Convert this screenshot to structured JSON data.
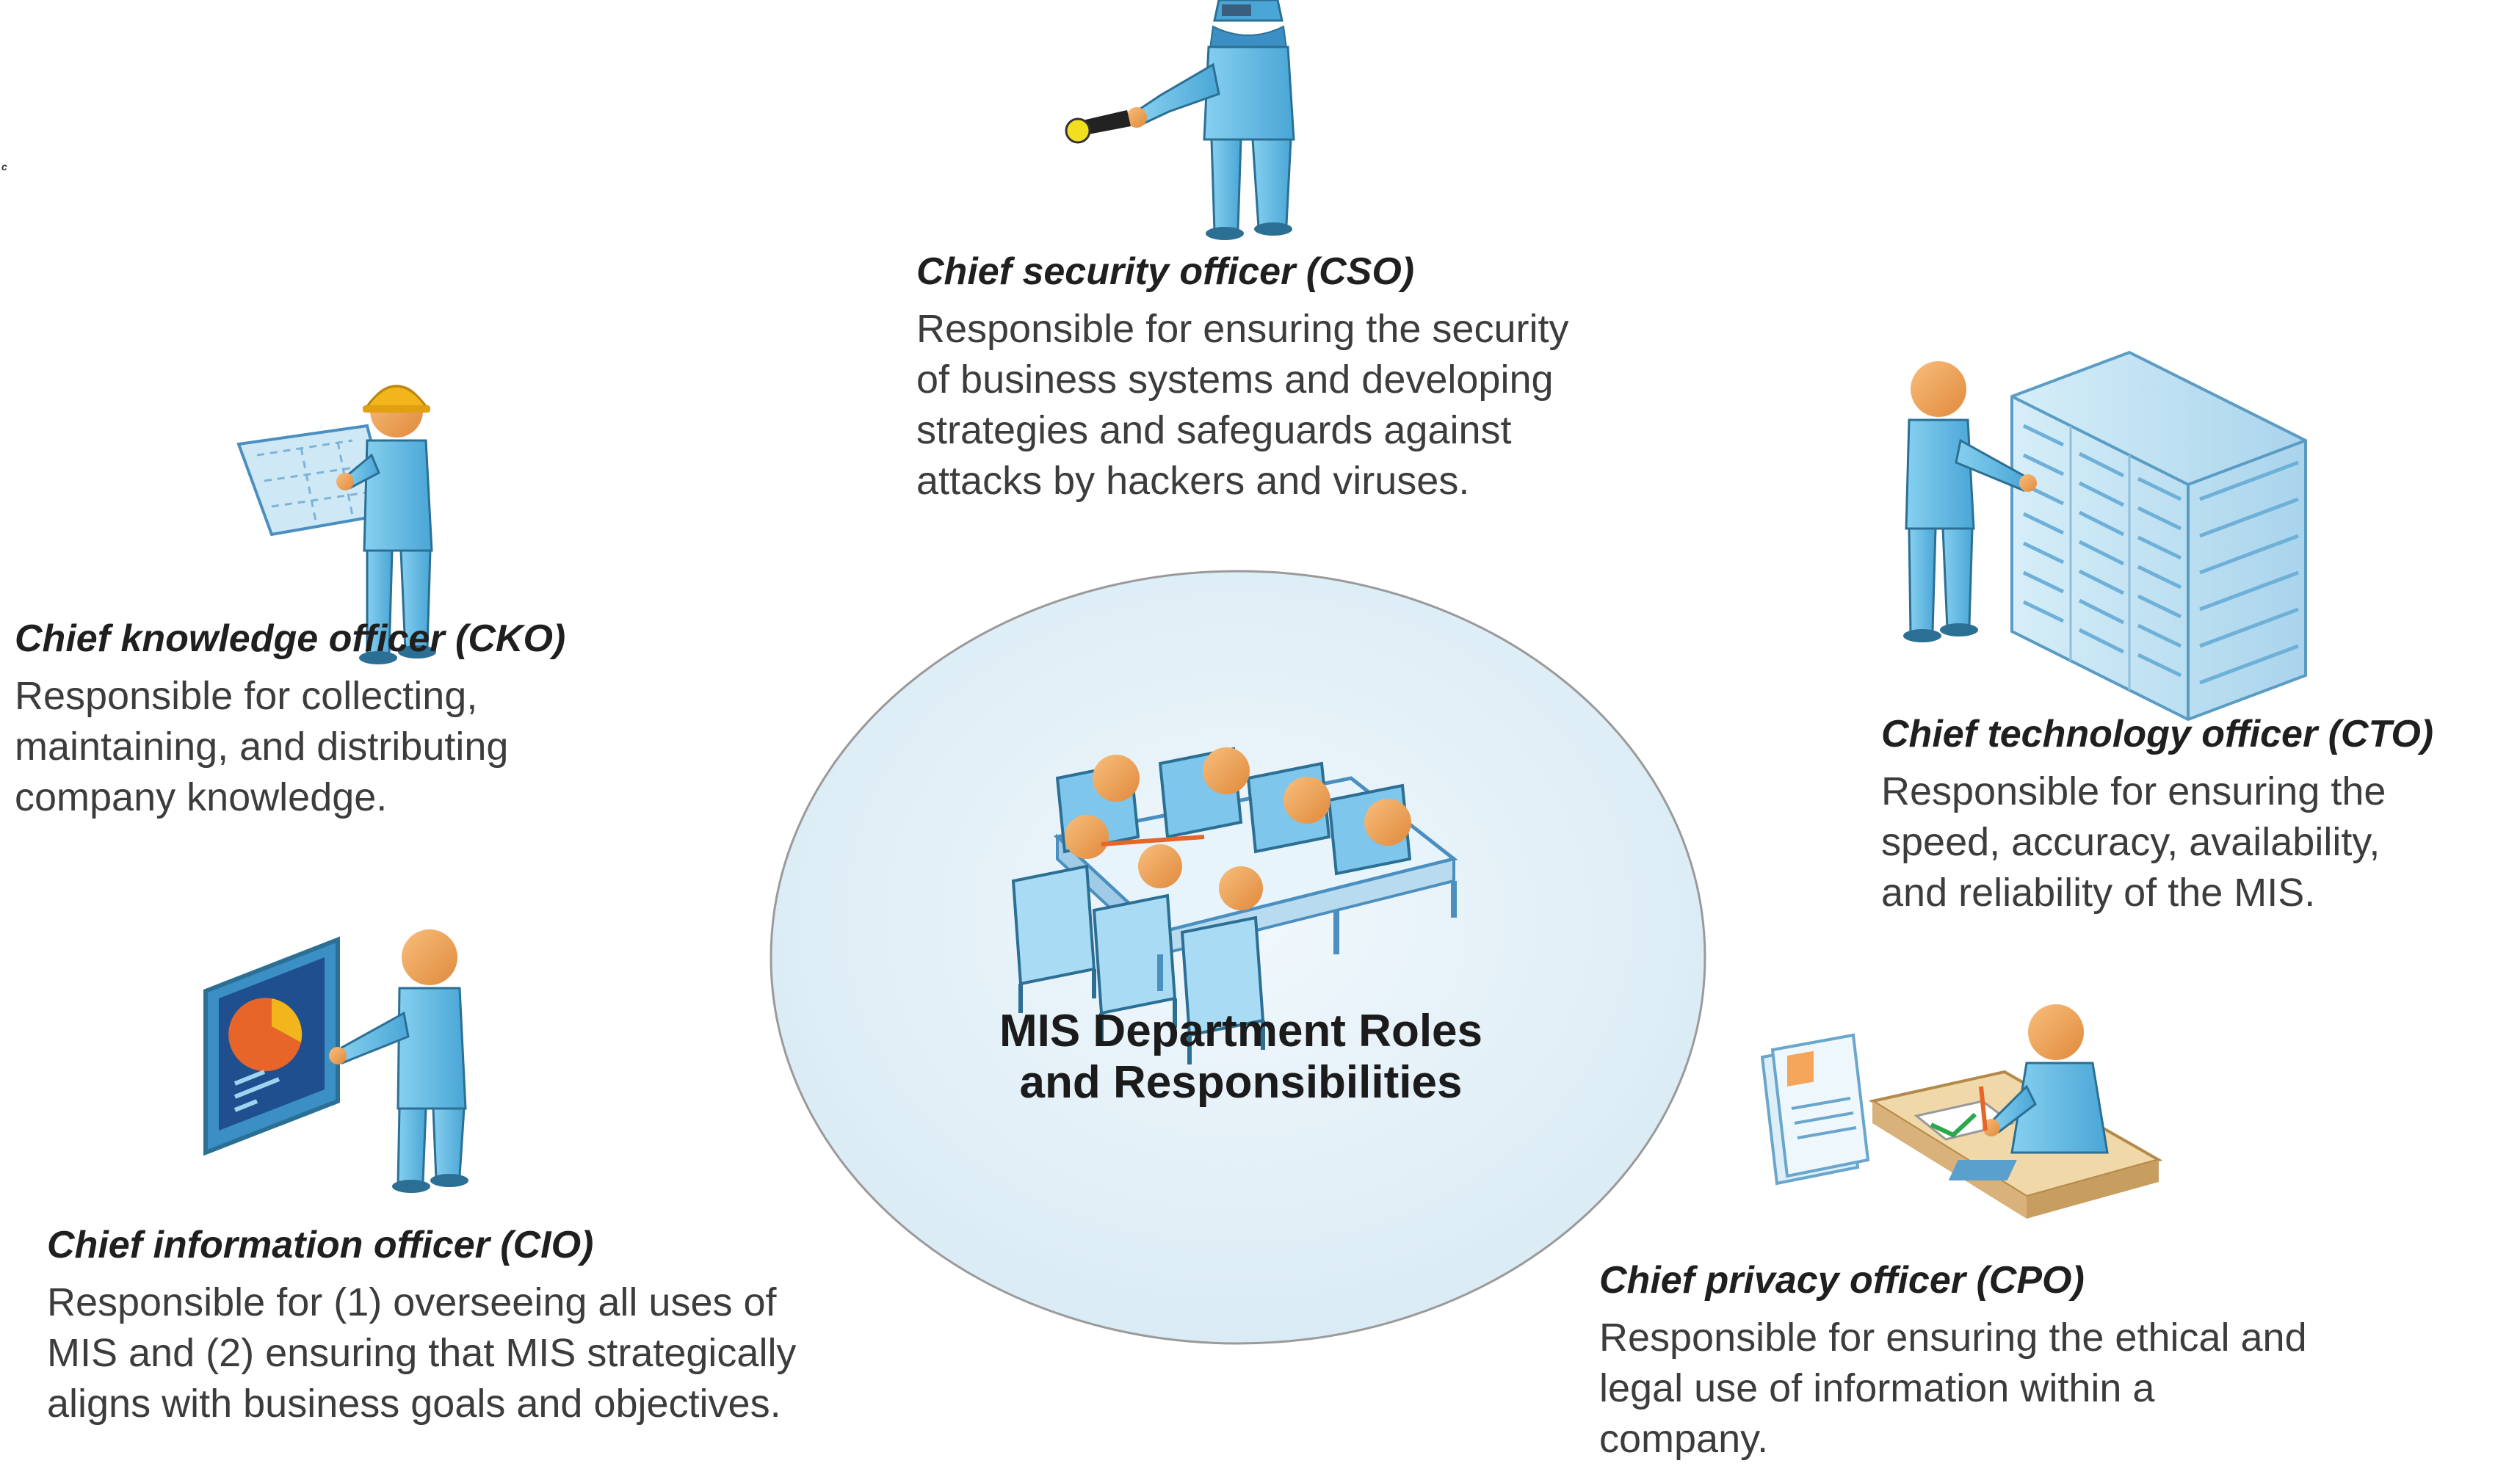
{
  "center": {
    "title_line1": "MIS Department Roles",
    "title_line2": "and Responsibilities"
  },
  "stray_text": "c",
  "roles": {
    "cso": {
      "title": "Chief security officer (CSO)",
      "lines": [
        "Responsible for ensuring the security",
        "of business systems and developing",
        "strategies and safeguards against",
        "attacks by hackers and viruses."
      ]
    },
    "cko": {
      "title": "Chief knowledge officer (CKO)",
      "lines": [
        "Responsible for collecting,",
        "maintaining, and distributing",
        "company knowledge."
      ]
    },
    "cto": {
      "title": "Chief technology officer (CTO)",
      "lines": [
        "Responsible for ensuring the",
        "speed, accuracy, availability,",
        "and reliability of the MIS."
      ]
    },
    "cio": {
      "title": "Chief information officer (CIO)",
      "lines": [
        "Responsible for (1) overseeing all uses of",
        "MIS and (2) ensuring that MIS strategically",
        "aligns with business goals and objectives."
      ]
    },
    "cpo": {
      "title": "Chief privacy officer (CPO)",
      "lines": [
        "Responsible for ensuring the ethical and",
        "legal use of information within a",
        "company."
      ]
    }
  },
  "colors": {
    "figure_body": "#6cc0e8",
    "figure_head": "#f4a55a",
    "circle_fill": "#e4f1f8",
    "circle_stroke": "#9a9a9a",
    "helmet": "#f2b61c"
  },
  "icons": {
    "cso": "security-guard-flashlight-icon",
    "cko": "worker-blueprint-icon",
    "cto": "technician-server-rack-icon",
    "cio": "presenter-pie-chart-board-icon",
    "cpo": "clerk-documents-desk-icon",
    "center": "meeting-table-icon"
  }
}
